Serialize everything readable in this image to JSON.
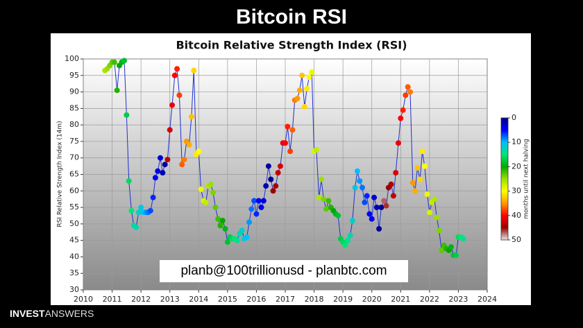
{
  "slide_title": "Bitcoin RSI",
  "logo_bold": "INVEST",
  "logo_light": "ANSWERS",
  "chart_data": {
    "type": "scatter",
    "title": "Bitcoin Relative Strength Index (RSI)",
    "y_label": "RSI Relative Strength Index (14m)",
    "annotation": "planb@100trillionusd  -  planbtc.com",
    "colorbar_label": "months until next halving",
    "line_color": "#1f2fd0",
    "xlim": [
      2010,
      2024
    ],
    "xticks": [
      2010,
      2011,
      2012,
      2013,
      2014,
      2015,
      2016,
      2017,
      2018,
      2019,
      2020,
      2021,
      2022,
      2023,
      2024
    ],
    "ylim": [
      30,
      100
    ],
    "yticks": [
      30,
      35,
      40,
      45,
      50,
      55,
      60,
      65,
      70,
      75,
      80,
      85,
      90,
      95,
      100
    ],
    "grid": true,
    "clim": [
      0,
      50
    ],
    "cticks": [
      0,
      10,
      20,
      30,
      40,
      50
    ],
    "cmap": [
      "#00008b",
      "#0000ff",
      "#00bfff",
      "#00e676",
      "#00a800",
      "#9be000",
      "#ffff00",
      "#ff9900",
      "#ff0000",
      "#990000",
      "#e8e8e8"
    ],
    "x": [
      2010.75,
      2010.83,
      2010.92,
      2011,
      2011.08,
      2011.17,
      2011.25,
      2011.33,
      2011.42,
      2011.5,
      2011.58,
      2011.67,
      2011.75,
      2011.83,
      2011.92,
      2012,
      2012.08,
      2012.17,
      2012.25,
      2012.33,
      2012.42,
      2012.5,
      2012.58,
      2012.67,
      2012.75,
      2012.83,
      2012.92,
      2013,
      2013.08,
      2013.17,
      2013.25,
      2013.33,
      2013.42,
      2013.5,
      2013.58,
      2013.67,
      2013.75,
      2013.83,
      2013.92,
      2014,
      2014.08,
      2014.17,
      2014.25,
      2014.33,
      2014.42,
      2014.5,
      2014.58,
      2014.67,
      2014.75,
      2014.83,
      2014.92,
      2015,
      2015.08,
      2015.17,
      2015.25,
      2015.33,
      2015.42,
      2015.5,
      2015.58,
      2015.67,
      2015.75,
      2015.83,
      2015.92,
      2016,
      2016.08,
      2016.17,
      2016.25,
      2016.33,
      2016.42,
      2016.5,
      2016.58,
      2016.67,
      2016.75,
      2016.83,
      2016.92,
      2017,
      2017.08,
      2017.17,
      2017.25,
      2017.33,
      2017.42,
      2017.5,
      2017.58,
      2017.67,
      2017.75,
      2017.83,
      2017.92,
      2018,
      2018.08,
      2018.17,
      2018.25,
      2018.33,
      2018.42,
      2018.5,
      2018.58,
      2018.67,
      2018.75,
      2018.83,
      2018.92,
      2019,
      2019.08,
      2019.17,
      2019.25,
      2019.33,
      2019.42,
      2019.5,
      2019.58,
      2019.67,
      2019.75,
      2019.83,
      2019.92,
      2020,
      2020.08,
      2020.17,
      2020.25,
      2020.33,
      2020.42,
      2020.5,
      2020.58,
      2020.67,
      2020.75,
      2020.83,
      2020.92,
      2021,
      2021.08,
      2021.17,
      2021.25,
      2021.33,
      2021.42,
      2021.5,
      2021.58,
      2021.67,
      2021.75,
      2021.83,
      2021.92,
      2022,
      2022.08,
      2022.17,
      2022.25,
      2022.33,
      2022.42,
      2022.5,
      2022.58,
      2022.67,
      2022.75,
      2022.83,
      2022.92,
      2023,
      2023.08,
      2023.17
    ],
    "values": [
      96.5,
      97,
      98,
      99,
      99,
      90.5,
      98,
      99,
      99.5,
      83,
      63,
      54,
      49.5,
      49,
      53.5,
      55,
      53.5,
      53.5,
      53.5,
      54,
      58,
      64,
      66,
      70,
      65.5,
      68,
      69.5,
      78.5,
      86,
      95,
      97,
      89,
      68,
      69.5,
      75,
      74,
      82.5,
      96.5,
      71,
      72,
      60.5,
      57,
      56.5,
      61.5,
      62,
      59.5,
      55,
      51.5,
      49.5,
      51,
      48.5,
      44.5,
      46,
      45.5,
      45.5,
      45,
      47,
      48,
      45.5,
      46,
      50.5,
      54.5,
      57,
      53,
      57,
      55,
      57,
      61.5,
      67.5,
      63.5,
      60,
      61.5,
      65.5,
      67.5,
      74.5,
      74.5,
      79.5,
      72,
      78.5,
      87.5,
      88,
      90.5,
      95,
      85.5,
      91,
      94.5,
      96,
      72,
      72.5,
      58,
      63.5,
      57.5,
      54.5,
      57,
      55,
      54,
      53,
      52.5,
      45.5,
      44.5,
      43.5,
      45,
      46.5,
      51,
      61,
      66,
      63,
      61,
      56.5,
      58.5,
      53,
      51.5,
      58,
      55,
      48.5,
      55,
      57,
      55.5,
      61,
      62,
      58.5,
      65.5,
      74.5,
      82,
      84.5,
      89,
      91.5,
      90,
      62.5,
      60,
      67,
      63.5,
      72,
      67.5,
      59,
      53.5,
      56.5,
      57.5,
      52,
      48,
      42,
      43.5,
      42.5,
      42,
      43,
      40.5,
      40.5,
      46,
      46,
      45.5
    ],
    "color_values": [
      26,
      25,
      24,
      23,
      22,
      21,
      20,
      19,
      18,
      17,
      16,
      15,
      14,
      13,
      12,
      11,
      10,
      9,
      8,
      7,
      6,
      5,
      4,
      3,
      2,
      1,
      43,
      42,
      41,
      40,
      39,
      38,
      37,
      36,
      35,
      34,
      33,
      32,
      31,
      30,
      29,
      28,
      27,
      26,
      25,
      24,
      23,
      22,
      21,
      20,
      19,
      18,
      17,
      16,
      15,
      14,
      13,
      12,
      11,
      10,
      9,
      8,
      7,
      6,
      5,
      4,
      3,
      2,
      1,
      0,
      45,
      44,
      43,
      42,
      41,
      40,
      39,
      38,
      37,
      36,
      35,
      34,
      33,
      32,
      31,
      30,
      29,
      28,
      27,
      26,
      25,
      24,
      23,
      22,
      21,
      20,
      19,
      18,
      17,
      16,
      15,
      14,
      13,
      12,
      11,
      10,
      9,
      8,
      7,
      6,
      5,
      4,
      3,
      2,
      1,
      0,
      47,
      46,
      45,
      44,
      43,
      42,
      41,
      40,
      39,
      38,
      37,
      36,
      35,
      34,
      33,
      32,
      31,
      30,
      29,
      28,
      27,
      26,
      25,
      24,
      23,
      22,
      21,
      20,
      19,
      18,
      17,
      16,
      15,
      14
    ]
  }
}
